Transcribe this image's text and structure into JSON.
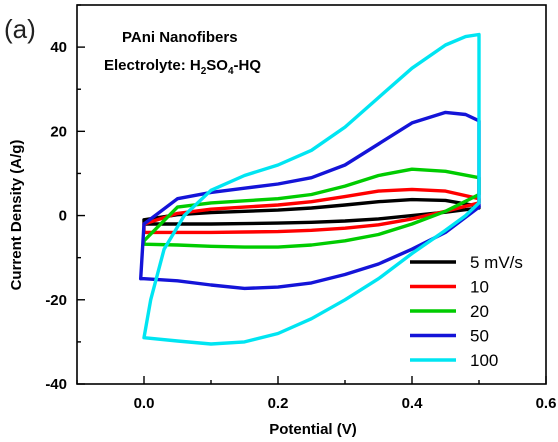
{
  "panel_label": "(a)",
  "chart_data": {
    "type": "line",
    "title": "",
    "annotations": {
      "line1": "PAni Nanofibers",
      "line2_prefix": "Electrolyte: H",
      "line2_sub1": "2",
      "line2_mid": "SO",
      "line2_sub2": "4",
      "line2_suffix": "-HQ"
    },
    "xlabel": "Potential (V)",
    "ylabel": "Current Density (A/g)",
    "xlim": [
      -0.1,
      0.6
    ],
    "ylim": [
      -40,
      50
    ],
    "xticks": [
      0.0,
      0.2,
      0.4,
      0.6
    ],
    "xtick_labels": [
      "0.0",
      "0.2",
      "0.4",
      "0.6"
    ],
    "yticks": [
      -40,
      -20,
      0,
      20,
      40
    ],
    "ytick_labels": [
      "-40",
      "-20",
      "0",
      "20",
      "40"
    ],
    "legend_position": "bottom-right",
    "series": [
      {
        "name": "5 mV/s",
        "color": "#000000",
        "x": [
          0.0,
          0.05,
          0.1,
          0.15,
          0.2,
          0.25,
          0.3,
          0.35,
          0.4,
          0.45,
          0.5,
          0.5,
          0.45,
          0.4,
          0.35,
          0.3,
          0.25,
          0.2,
          0.15,
          0.1,
          0.05,
          0.0,
          0.0
        ],
        "y": [
          -1.0,
          0.2,
          0.7,
          1.0,
          1.3,
          1.8,
          2.5,
          3.3,
          3.8,
          3.6,
          2.2,
          1.8,
          0.8,
          0.0,
          -0.8,
          -1.3,
          -1.6,
          -1.8,
          -1.9,
          -2.0,
          -2.0,
          -2.0,
          -1.0
        ]
      },
      {
        "name": "10",
        "color": "#ff0000",
        "x": [
          0.0,
          0.05,
          0.1,
          0.15,
          0.2,
          0.25,
          0.3,
          0.35,
          0.4,
          0.45,
          0.5,
          0.5,
          0.45,
          0.4,
          0.35,
          0.3,
          0.25,
          0.2,
          0.15,
          0.1,
          0.05,
          0.0,
          0.0
        ],
        "y": [
          -2.0,
          0.5,
          1.5,
          2.0,
          2.5,
          3.3,
          4.5,
          5.8,
          6.2,
          5.8,
          4.0,
          3.0,
          1.0,
          -0.8,
          -2.2,
          -3.0,
          -3.5,
          -3.8,
          -3.9,
          -4.0,
          -4.0,
          -4.0,
          -2.0
        ]
      },
      {
        "name": "20",
        "color": "#00cc00",
        "x": [
          0.0,
          0.05,
          0.1,
          0.15,
          0.2,
          0.25,
          0.3,
          0.35,
          0.4,
          0.45,
          0.5,
          0.5,
          0.45,
          0.4,
          0.35,
          0.3,
          0.25,
          0.2,
          0.15,
          0.1,
          0.05,
          0.0,
          0.0
        ],
        "y": [
          -6.0,
          2.0,
          3.0,
          3.5,
          4.0,
          5.0,
          7.0,
          9.5,
          11.0,
          10.5,
          9.0,
          5.0,
          1.0,
          -2.0,
          -4.5,
          -6.0,
          -7.0,
          -7.5,
          -7.5,
          -7.3,
          -7.0,
          -6.8,
          -6.0
        ]
      },
      {
        "name": "50",
        "color": "#1414d8",
        "x": [
          -0.005,
          0.0,
          0.05,
          0.1,
          0.15,
          0.2,
          0.25,
          0.3,
          0.35,
          0.4,
          0.45,
          0.48,
          0.5,
          0.5,
          0.45,
          0.4,
          0.35,
          0.3,
          0.25,
          0.2,
          0.15,
          0.1,
          0.05,
          0.0,
          -0.005
        ],
        "y": [
          -15.0,
          -2.0,
          4.0,
          5.5,
          6.5,
          7.5,
          9.0,
          12.0,
          17.0,
          22.0,
          24.5,
          24.0,
          22.5,
          2.0,
          -4.0,
          -8.0,
          -11.5,
          -14.0,
          -16.0,
          -17.0,
          -17.3,
          -16.5,
          -15.5,
          -15.0,
          -15.0
        ]
      },
      {
        "name": "100",
        "color": "#00e5f2",
        "x": [
          0.0,
          0.01,
          0.03,
          0.06,
          0.1,
          0.15,
          0.2,
          0.25,
          0.3,
          0.35,
          0.4,
          0.45,
          0.48,
          0.5,
          0.5,
          0.48,
          0.45,
          0.4,
          0.35,
          0.3,
          0.25,
          0.2,
          0.15,
          0.1,
          0.05,
          0.0,
          0.0
        ],
        "y": [
          -29.0,
          -20.0,
          -8.0,
          0.0,
          6.0,
          9.5,
          12.0,
          15.5,
          21.0,
          28.0,
          35.0,
          40.5,
          42.5,
          43.0,
          3.0,
          0.0,
          -3.5,
          -9.0,
          -15.0,
          -20.0,
          -24.5,
          -28.0,
          -30.0,
          -30.5,
          -29.8,
          -29.0,
          -29.0
        ]
      }
    ]
  }
}
